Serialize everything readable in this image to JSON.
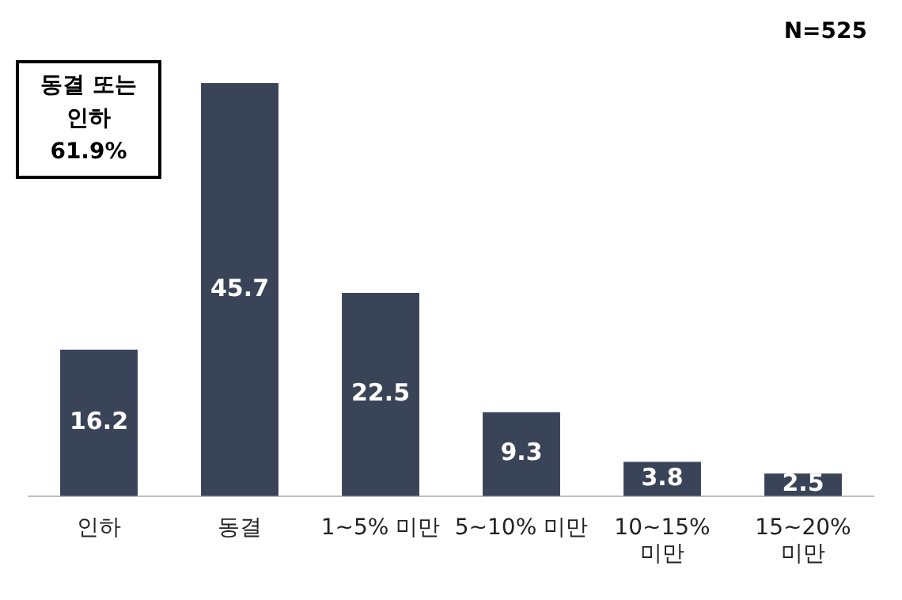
{
  "chart_data": {
    "type": "bar",
    "categories": [
      "인하",
      "동결",
      "1~5% 미만",
      "5~10% 미만",
      "10~15% 미만",
      "15~20% 미만"
    ],
    "values": [
      16.2,
      45.7,
      22.5,
      9.3,
      3.8,
      2.5
    ],
    "color": "#3a4458",
    "data_labels": true,
    "annotations": [
      "N=525",
      "동결 또는 인하 61.9%"
    ]
  }
}
